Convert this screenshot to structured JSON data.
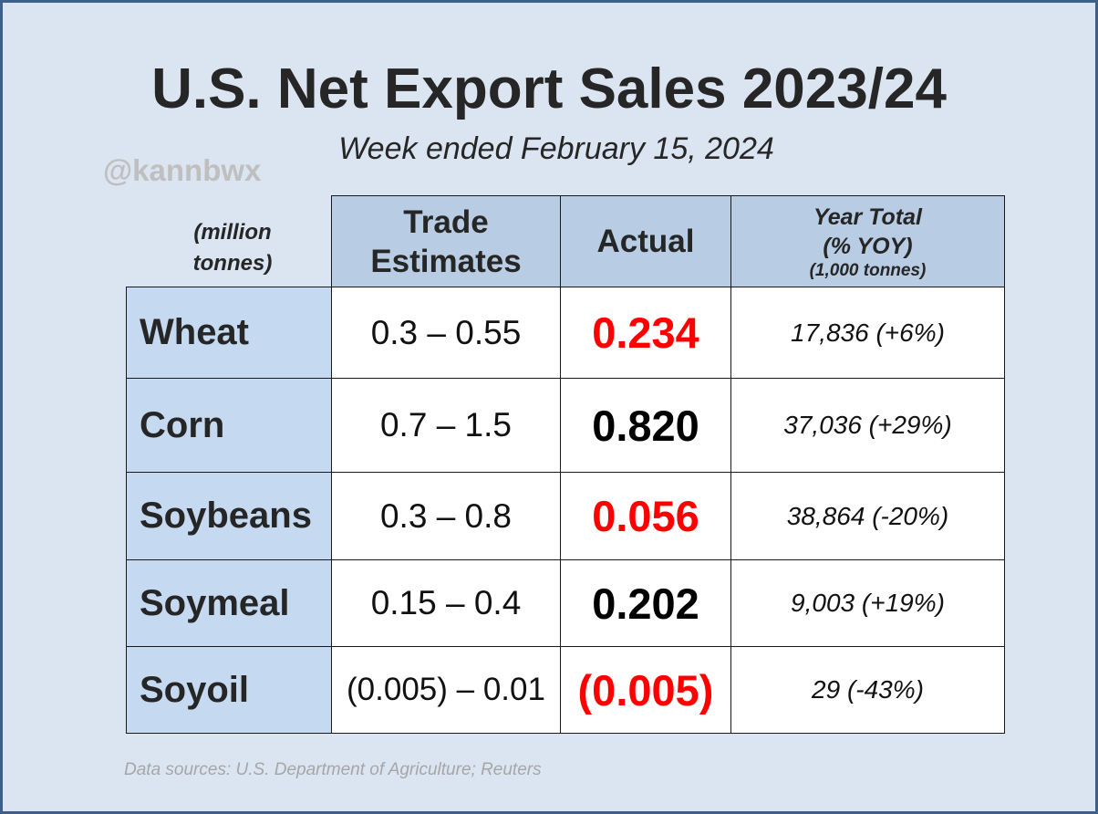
{
  "title": "U.S. Net Export Sales 2023/24",
  "subtitle": "Week ended February 15, 2024",
  "watermark": "@kannbwx",
  "units_label": {
    "line1": "(million",
    "line2": "tonnes)"
  },
  "headers": {
    "estimates": {
      "line1": "Trade",
      "line2": "Estimates"
    },
    "actual": "Actual",
    "year_total": {
      "line1": "Year Total",
      "line2": "(% YOY)",
      "line3": "(1,000 tonnes)"
    }
  },
  "colors": {
    "highlight": "#ff0000",
    "normal": "#000000",
    "header_bg": "#b8cce4",
    "label_bg": "#c5d9f1",
    "panel_bg": "#dbe5f1"
  },
  "rows": [
    {
      "commodity": "Wheat",
      "estimates": "0.3 – 0.55",
      "actual": "0.234",
      "actual_color": "#ff0000",
      "year_total": "17,836  (+6%)"
    },
    {
      "commodity": "Corn",
      "estimates": "0.7 – 1.5",
      "actual": "0.820",
      "actual_color": "#000000",
      "year_total": "37,036  (+29%)"
    },
    {
      "commodity": "Soybeans",
      "estimates": "0.3 – 0.8",
      "actual": "0.056",
      "actual_color": "#ff0000",
      "year_total": "38,864  (-20%)"
    },
    {
      "commodity": "Soymeal",
      "estimates": "0.15 – 0.4",
      "actual": "0.202",
      "actual_color": "#000000",
      "year_total": "9,003  (+19%)"
    },
    {
      "commodity": "Soyoil",
      "estimates": "(0.005) – 0.01",
      "actual": "(0.005)",
      "actual_color": "#ff0000",
      "year_total": "29  (-43%)"
    }
  ],
  "footer": "Data sources: U.S. Department of Agriculture; Reuters"
}
